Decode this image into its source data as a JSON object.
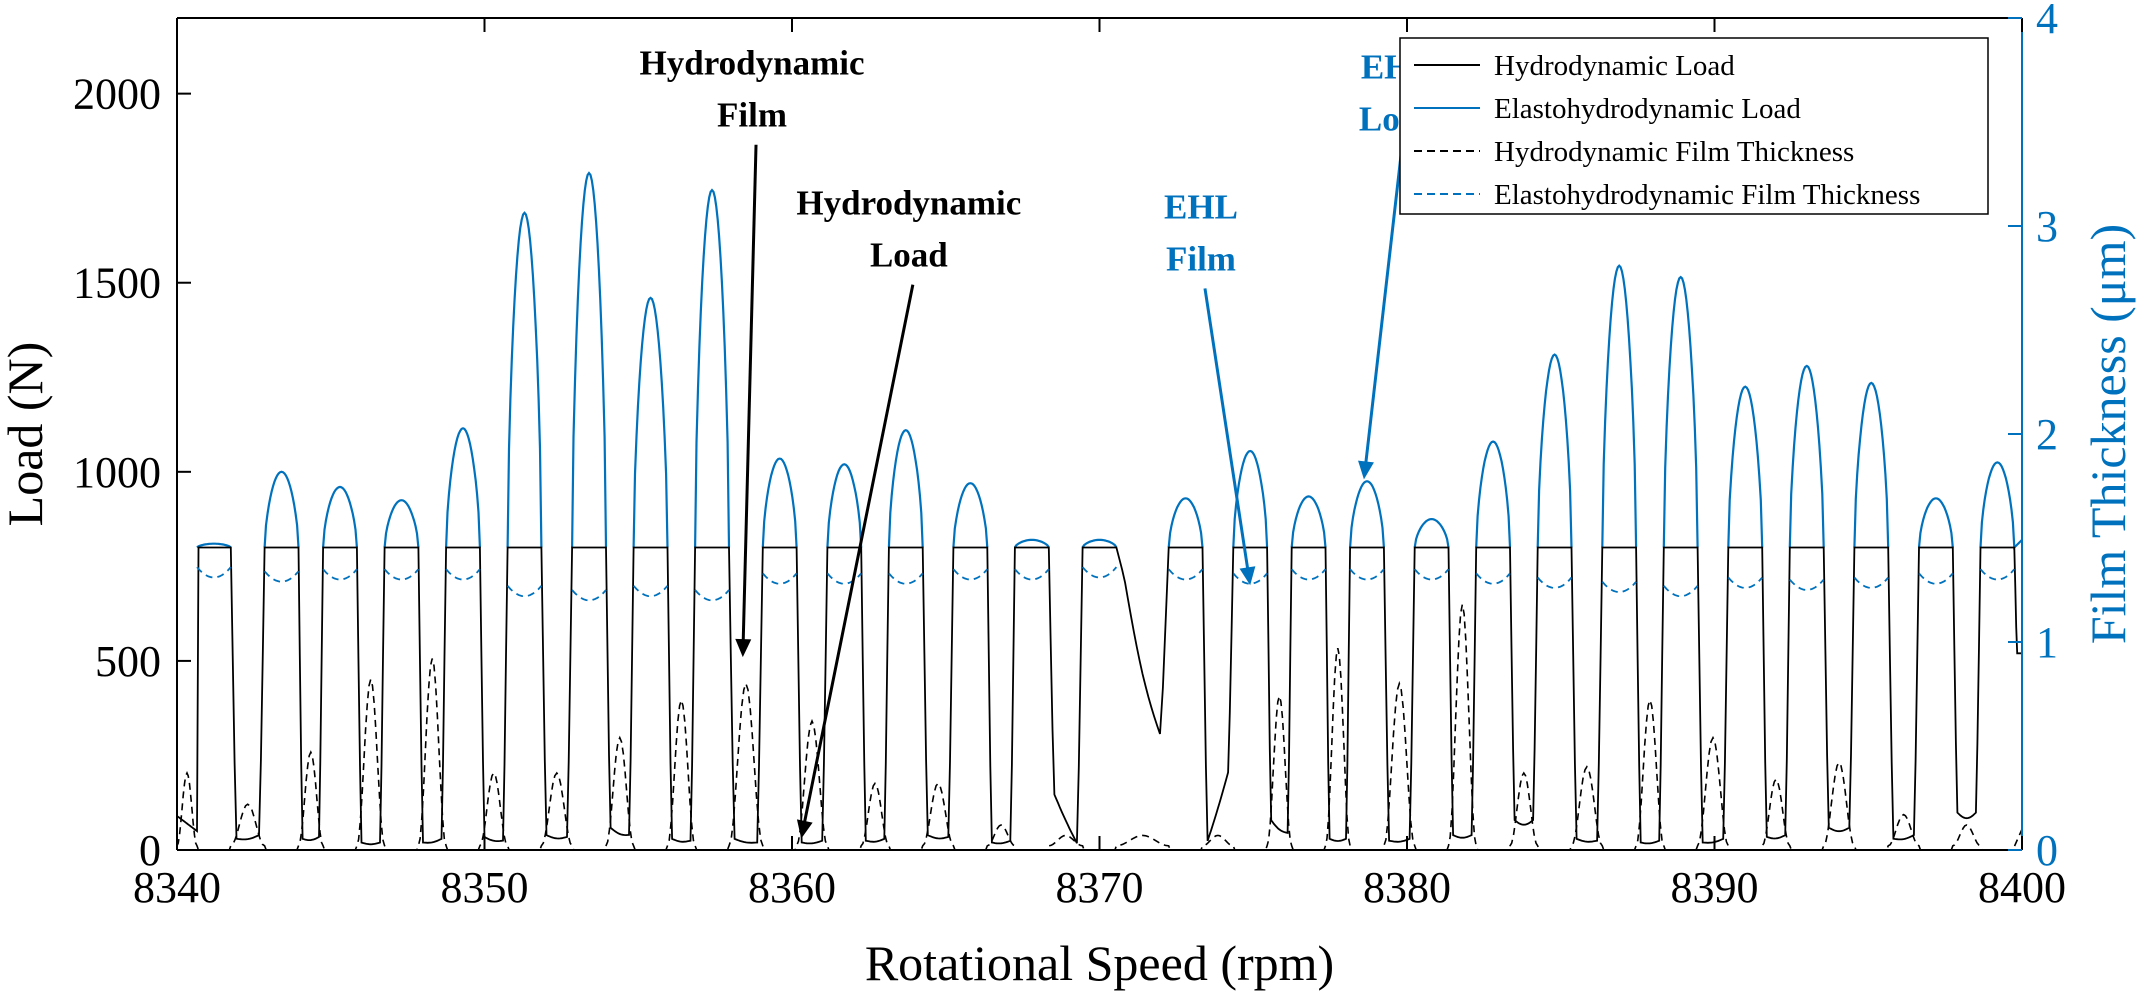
{
  "chart_data": {
    "type": "line",
    "title": "",
    "xlabel": "Rotational Speed (rpm)",
    "ylabel_left": "Load (N)",
    "ylabel_right": "Film Thickness (μm)",
    "xlim": [
      8340,
      8400
    ],
    "ylim_left": [
      0,
      2200
    ],
    "ylim_right": [
      0,
      4
    ],
    "xticks": [
      "8340",
      "8350",
      "8360",
      "8370",
      "8380",
      "8390",
      "8400"
    ],
    "yticks_left": [
      "0",
      "500",
      "1000",
      "1500",
      "2000"
    ],
    "yticks_right": [
      "0",
      "1",
      "2",
      "3",
      "4"
    ],
    "grid": false,
    "legend_position": "top-right",
    "colors": {
      "black": "#000000",
      "blue": "#0072BD"
    },
    "series": [
      {
        "name": "Hydrodynamic Load",
        "axis": "left",
        "color": "#000000",
        "style": "solid"
      },
      {
        "name": "Elastohydrodynamic Load",
        "axis": "left",
        "color": "#0072BD",
        "style": "solid"
      },
      {
        "name": "Hydrodynamic Film Thickness",
        "axis": "right",
        "color": "#000000",
        "style": "dashed"
      },
      {
        "name": "Elastohydrodynamic Film Thickness",
        "axis": "right",
        "color": "#0072BD",
        "style": "dashed"
      }
    ],
    "gaps": [
      {
        "x": 8341.2,
        "pre": 60,
        "post": 30,
        "ehlPeak": 810,
        "ehlBase": 1.31,
        "hydroBump": 0.35
      },
      {
        "x": 8343.4,
        "pre": 40,
        "post": 30,
        "ehlPeak": 1000,
        "ehlBase": 1.29,
        "hydroBump": 0.2
      },
      {
        "x": 8345.3,
        "pre": 35,
        "post": 20,
        "ehlPeak": 960,
        "ehlBase": 1.3,
        "hydroBump": 0.45
      },
      {
        "x": 8347.3,
        "pre": 20,
        "post": 20,
        "ehlPeak": 925,
        "ehlBase": 1.3,
        "hydroBump": 0.8
      },
      {
        "x": 8349.3,
        "pre": 30,
        "post": 35,
        "ehlPeak": 1115,
        "ehlBase": 1.3,
        "hydroBump": 0.9
      },
      {
        "x": 8351.3,
        "pre": 25,
        "post": 40,
        "ehlPeak": 1685,
        "ehlBase": 1.22,
        "hydroBump": 0.35
      },
      {
        "x": 8353.4,
        "pre": 35,
        "post": 60,
        "ehlPeak": 1790,
        "ehlBase": 1.2,
        "hydroBump": 0.35
      },
      {
        "x": 8355.4,
        "pre": 40,
        "post": 30,
        "ehlPeak": 1460,
        "ehlBase": 1.22,
        "hydroBump": 0.52
      },
      {
        "x": 8357.4,
        "pre": 25,
        "post": 30,
        "ehlPeak": 1745,
        "ehlBase": 1.2,
        "hydroBump": 0.7
      },
      {
        "x": 8359.6,
        "pre": 20,
        "post": 20,
        "ehlPeak": 1035,
        "ehlBase": 1.28,
        "hydroBump": 0.78
      },
      {
        "x": 8361.7,
        "pre": 25,
        "post": 25,
        "ehlPeak": 1020,
        "ehlBase": 1.28,
        "hydroBump": 0.6
      },
      {
        "x": 8363.7,
        "pre": 30,
        "post": 40,
        "ehlPeak": 1110,
        "ehlBase": 1.28,
        "hydroBump": 0.3
      },
      {
        "x": 8365.8,
        "pre": 35,
        "post": 20,
        "ehlPeak": 970,
        "ehlBase": 1.3,
        "hydroBump": 0.3
      },
      {
        "x": 8367.8,
        "pre": 25,
        "post": 150,
        "ehlPeak": 820,
        "ehlBase": 1.3,
        "hydroBump": 0.1
      },
      {
        "x": 8370.0,
        "pre": 15,
        "post": 720,
        "ehlPeak": 820,
        "ehlBase": 1.31,
        "hydroBump": 0.05
      },
      {
        "x": 8372.8,
        "pre": 300,
        "post": 20,
        "ehlPeak": 930,
        "ehlBase": 1.3,
        "hydroBump": 0.05
      },
      {
        "x": 8374.9,
        "pre": 210,
        "post": 80,
        "ehlPeak": 1055,
        "ehlBase": 1.28,
        "hydroBump": 0.05
      },
      {
        "x": 8376.8,
        "pre": 45,
        "post": 30,
        "ehlPeak": 935,
        "ehlBase": 1.3,
        "hydroBump": 0.72
      },
      {
        "x": 8378.7,
        "pre": 30,
        "post": 25,
        "ehlPeak": 975,
        "ehlBase": 1.3,
        "hydroBump": 0.95
      },
      {
        "x": 8380.8,
        "pre": 30,
        "post": 40,
        "ehlPeak": 875,
        "ehlBase": 1.3,
        "hydroBump": 0.78
      },
      {
        "x": 8382.8,
        "pre": 40,
        "post": 80,
        "ehlPeak": 1080,
        "ehlBase": 1.28,
        "hydroBump": 1.16
      },
      {
        "x": 8384.8,
        "pre": 80,
        "post": 30,
        "ehlPeak": 1310,
        "ehlBase": 1.26,
        "hydroBump": 0.35
      },
      {
        "x": 8386.9,
        "pre": 25,
        "post": 20,
        "ehlPeak": 1545,
        "ehlBase": 1.24,
        "hydroBump": 0.38
      },
      {
        "x": 8388.9,
        "pre": 25,
        "post": 20,
        "ehlPeak": 1515,
        "ehlBase": 1.22,
        "hydroBump": 0.7
      },
      {
        "x": 8391.0,
        "pre": 30,
        "post": 35,
        "ehlPeak": 1225,
        "ehlBase": 1.26,
        "hydroBump": 0.52
      },
      {
        "x": 8393.0,
        "pre": 40,
        "post": 60,
        "ehlPeak": 1280,
        "ehlBase": 1.25,
        "hydroBump": 0.32
      },
      {
        "x": 8395.1,
        "pre": 60,
        "post": 30,
        "ehlPeak": 1235,
        "ehlBase": 1.26,
        "hydroBump": 0.4
      },
      {
        "x": 8397.2,
        "pre": 40,
        "post": 100,
        "ehlPeak": 930,
        "ehlBase": 1.28,
        "hydroBump": 0.15
      },
      {
        "x": 8399.2,
        "pre": 100,
        "post": 520,
        "ehlPeak": 1025,
        "ehlBase": 1.3,
        "hydroBump": 0.1
      }
    ],
    "contact_load_level": 800,
    "annotations": [
      {
        "lines": [
          "Hydrodynamic",
          "Film"
        ],
        "color": "#000000",
        "text_x": 8358.7,
        "text_y": 2050,
        "target_x": 8358.4,
        "target_y": 510
      },
      {
        "lines": [
          "Hydrodynamic",
          "Load"
        ],
        "color": "#000000",
        "text_x": 8363.8,
        "text_y": 1680,
        "target_x": 8360.3,
        "target_y": 30
      },
      {
        "lines": [
          "EHL",
          "Film"
        ],
        "color": "#0072BD",
        "text_x": 8373.3,
        "text_y": 1670,
        "target_x": 8374.9,
        "target_y": 700
      },
      {
        "lines": [
          "EHL",
          "Load"
        ],
        "color": "#0072BD",
        "text_x": 8379.7,
        "text_y": 2040,
        "target_x": 8378.6,
        "target_y": 980
      }
    ]
  }
}
